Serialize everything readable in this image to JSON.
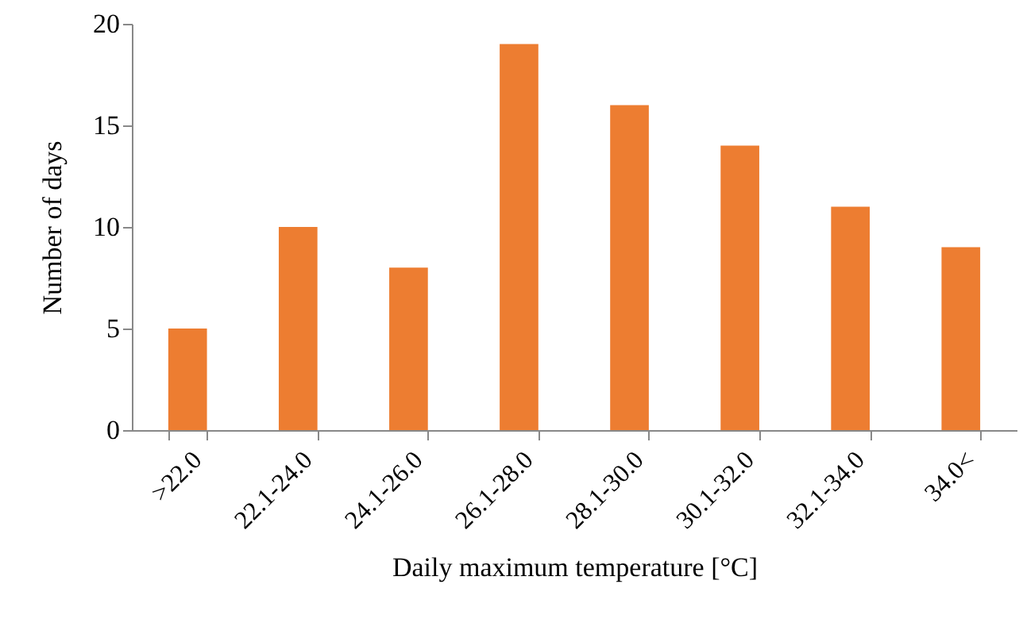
{
  "chart_data": {
    "type": "bar",
    "xlabel": "Daily maximum temperature [°C]",
    "ylabel": "Number of days",
    "categories": [
      ">22.0",
      "22.1-24.0",
      "24.1-26.0",
      "26.1-28.0",
      "28.1-30.0",
      "30.1-32.0",
      "32.1-34.0",
      "34.0<"
    ],
    "values": [
      5,
      10,
      8,
      19,
      16,
      14,
      11,
      9
    ],
    "color": "#ed7d31",
    "ylim": [
      0,
      20
    ],
    "yticks": [
      0,
      5,
      10,
      15,
      20
    ]
  }
}
